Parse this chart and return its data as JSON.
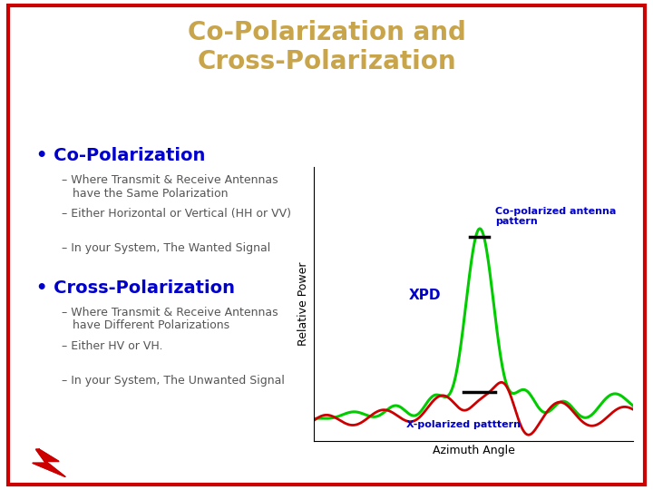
{
  "title_line1": "Co-Polarization and",
  "title_line2": "Cross-Polarization",
  "title_color": "#C8A44A",
  "title_fontsize": 20,
  "bg_color": "#FFFFFF",
  "border_color": "#CC0000",
  "bullet1": "Co-Polarization",
  "bullet2": "Cross-Polarization",
  "bullet_color": "#0000CC",
  "bullet_fontsize": 14,
  "sub_items_1": [
    "– Where Transmit & Receive Antennas\n   have the Same Polarization",
    "– Either Horizontal or Vertical (HH or VV)",
    "– In your System, The Wanted Signal"
  ],
  "sub_items_2": [
    "– Where Transmit & Receive Antennas\n   have Different Polarizations",
    "– Either HV or VH.",
    "– In your System, The Unwanted Signal"
  ],
  "sub_color": "#555555",
  "sub_fontsize": 9,
  "plot_xlabel": "Azimuth Angle",
  "plot_ylabel": "Relative Power",
  "co_pol_label": "Co-polarized antenna\npattern",
  "x_pol_label": "X-polarized patttern",
  "xpd_label": "XPD",
  "co_pol_color": "#00CC00",
  "x_pol_color": "#CC0000",
  "label_color": "#0000CC",
  "lightning_color": "#CC0000"
}
